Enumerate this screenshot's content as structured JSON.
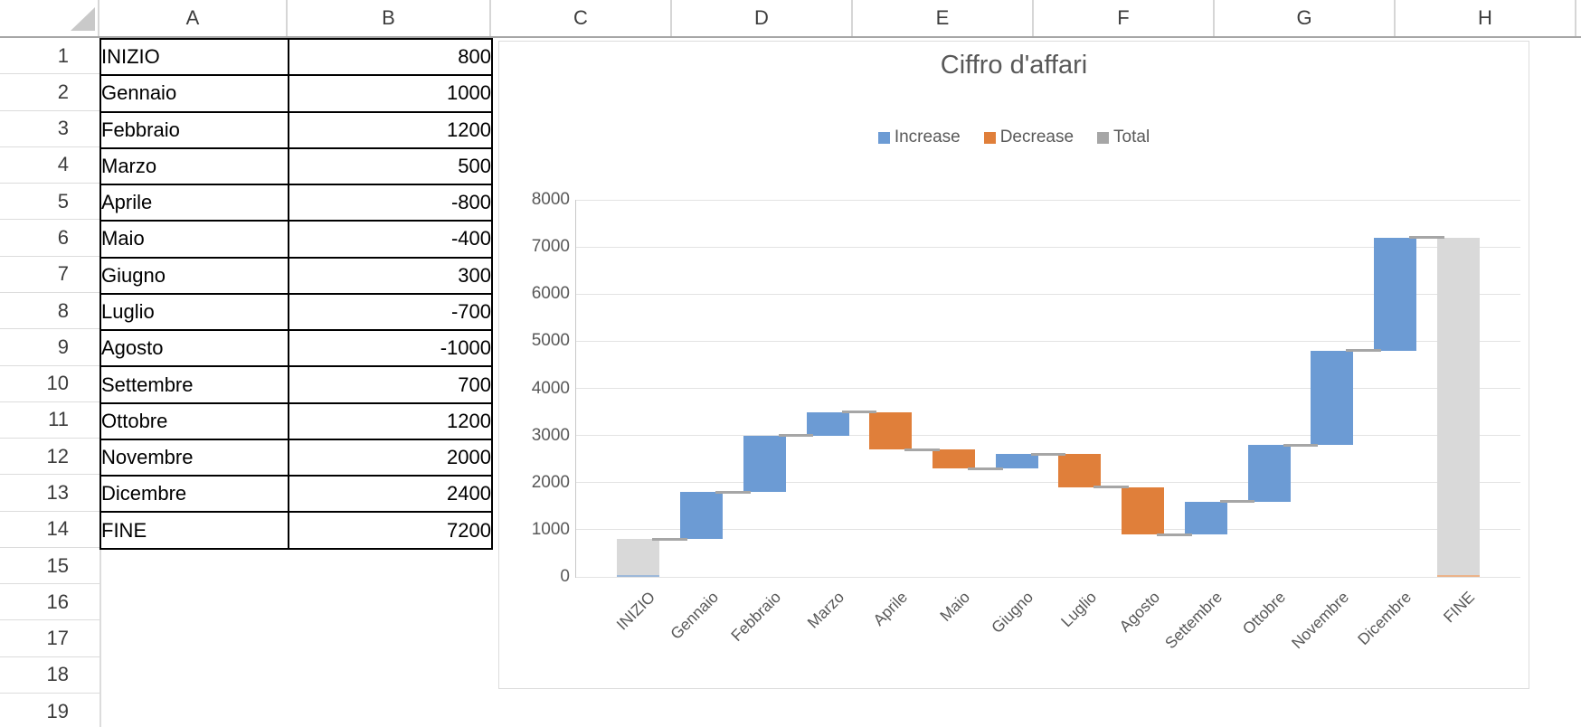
{
  "spreadsheet": {
    "column_headers": [
      "A",
      "B",
      "C",
      "D",
      "E",
      "F",
      "G",
      "H"
    ],
    "row_numbers": [
      "1",
      "2",
      "3",
      "4",
      "5",
      "6",
      "7",
      "8",
      "9",
      "10",
      "11",
      "12",
      "13",
      "14",
      "15",
      "16",
      "17",
      "18",
      "19"
    ],
    "table": {
      "rows": [
        {
          "label": "INIZIO",
          "value": "800"
        },
        {
          "label": "Gennaio",
          "value": "1000"
        },
        {
          "label": "Febbraio",
          "value": "1200"
        },
        {
          "label": "Marzo",
          "value": "500"
        },
        {
          "label": "Aprile",
          "value": "-800"
        },
        {
          "label": "Maio",
          "value": "-400"
        },
        {
          "label": "Giugno",
          "value": "300"
        },
        {
          "label": "Luglio",
          "value": "-700"
        },
        {
          "label": "Agosto",
          "value": "-1000"
        },
        {
          "label": "Settembre",
          "value": "700"
        },
        {
          "label": "Ottobre",
          "value": "1200"
        },
        {
          "label": "Novembre",
          "value": "2000"
        },
        {
          "label": "Dicembre",
          "value": "2400"
        },
        {
          "label": "FINE",
          "value": "7200"
        }
      ]
    }
  },
  "chart": {
    "title": "Ciffro d'affari",
    "legend": [
      {
        "label": "Increase",
        "color": "#6c9bd4"
      },
      {
        "label": "Decrease",
        "color": "#e07f3a"
      },
      {
        "label": "Total",
        "color": "#a6a6a6"
      }
    ],
    "colors": {
      "increase_bar": "#6c9bd4",
      "decrease_bar": "#e07f3a",
      "total_bar": "#d9d9d9",
      "total_bar_base_edge_start": "#9db8d9",
      "total_bar_base_edge_end": "#ebb38a",
      "connector": "#a6a6a6",
      "gridline": "#e3e3e3",
      "axis_line": "#c9c9c9",
      "text": "#595959"
    }
  },
  "chart_data": {
    "type": "bar",
    "subtype": "waterfall",
    "title": "Ciffro d'affari",
    "categories": [
      "INIZIO",
      "Gennaio",
      "Febbraio",
      "Marzo",
      "Aprile",
      "Maio",
      "Giugno",
      "Luglio",
      "Agosto",
      "Settembre",
      "Ottobre",
      "Novembre",
      "Dicembre",
      "FINE"
    ],
    "values": [
      800,
      1000,
      1200,
      500,
      -800,
      -400,
      300,
      -700,
      -1000,
      700,
      1200,
      2000,
      2400,
      7200
    ],
    "bar_types": [
      "total",
      "increase",
      "increase",
      "increase",
      "decrease",
      "decrease",
      "increase",
      "decrease",
      "decrease",
      "increase",
      "increase",
      "increase",
      "increase",
      "total"
    ],
    "cumulative": [
      800,
      1800,
      3000,
      3500,
      2700,
      2300,
      2600,
      1900,
      900,
      1600,
      2800,
      4800,
      7200,
      7200
    ],
    "legend_entries": [
      "Increase",
      "Decrease",
      "Total"
    ],
    "legend_position": "top",
    "xlabel": "",
    "ylabel": "",
    "ylim": [
      0,
      8000
    ],
    "ytick_step": 1000,
    "yticks": [
      0,
      1000,
      2000,
      3000,
      4000,
      5000,
      6000,
      7000,
      8000
    ],
    "grid": "horizontal",
    "x_label_rotation_deg": -45
  }
}
